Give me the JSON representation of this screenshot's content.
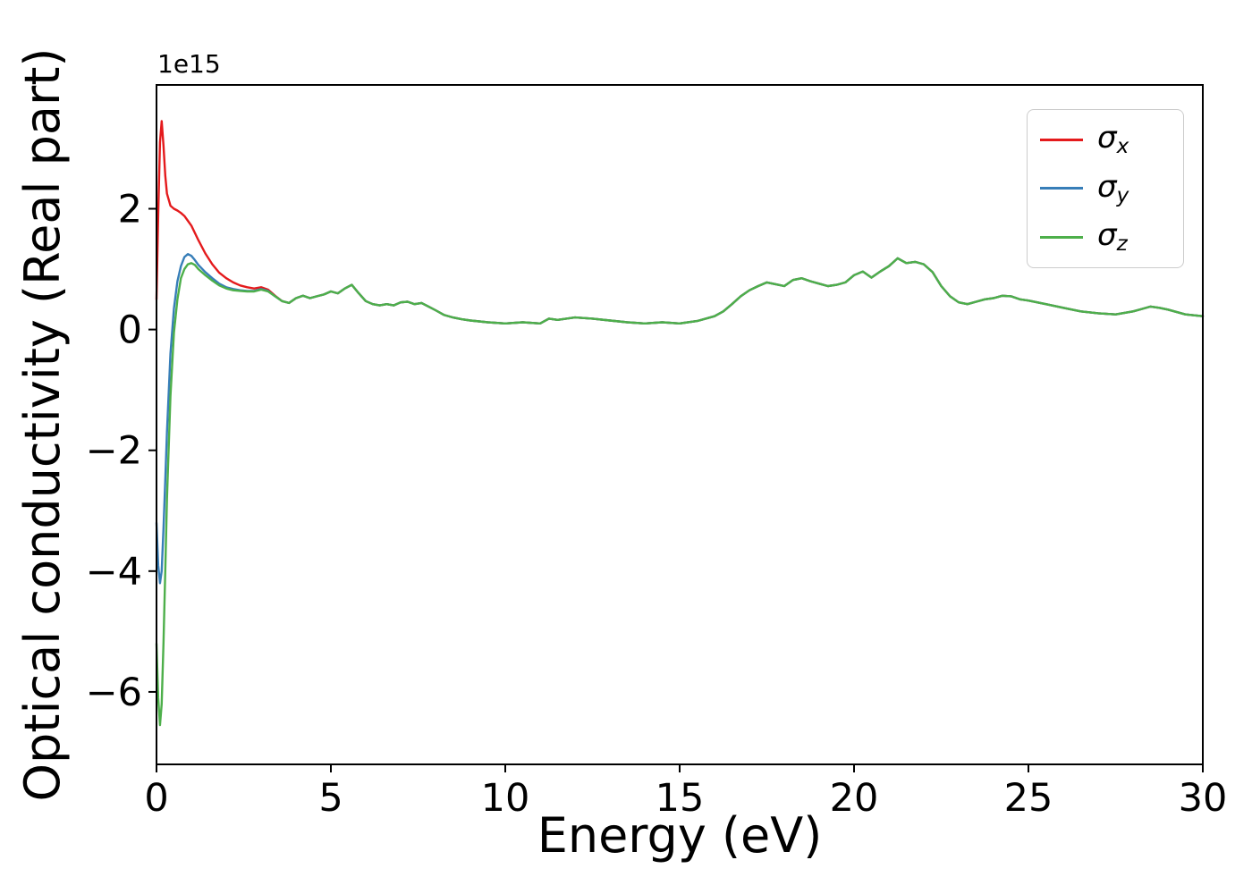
{
  "chart_data": {
    "type": "line",
    "title": "",
    "xlabel": "Energy (eV)",
    "ylabel": "Optical conductivity (Real part)",
    "offset_text": "1e15",
    "grid": false,
    "legend_position": "upper right",
    "xlim": [
      0,
      30
    ],
    "ylim": [
      -7.2,
      4.05
    ],
    "xticks": [
      {
        "v": 0,
        "label": "0"
      },
      {
        "v": 5,
        "label": "5"
      },
      {
        "v": 10,
        "label": "10"
      },
      {
        "v": 15,
        "label": "15"
      },
      {
        "v": 20,
        "label": "20"
      },
      {
        "v": 25,
        "label": "25"
      },
      {
        "v": 30,
        "label": "30"
      }
    ],
    "yticks": [
      {
        "v": 2,
        "label": "2"
      },
      {
        "v": 0,
        "label": "0"
      },
      {
        "v": -2,
        "label": "−2"
      },
      {
        "v": -4,
        "label": "−4"
      },
      {
        "v": -6,
        "label": "−6"
      }
    ],
    "x": [
      0,
      0.05,
      0.1,
      0.15,
      0.2,
      0.25,
      0.3,
      0.4,
      0.5,
      0.6,
      0.7,
      0.8,
      0.9,
      1.0,
      1.1,
      1.2,
      1.4,
      1.6,
      1.8,
      2.0,
      2.2,
      2.4,
      2.6,
      2.8,
      3.0,
      3.2,
      3.4,
      3.6,
      3.8,
      4.0,
      4.2,
      4.4,
      4.6,
      4.8,
      5.0,
      5.2,
      5.4,
      5.6,
      5.8,
      6.0,
      6.2,
      6.4,
      6.6,
      6.8,
      7.0,
      7.2,
      7.4,
      7.6,
      7.8,
      8.0,
      8.25,
      8.5,
      8.75,
      9.0,
      9.5,
      10.0,
      10.5,
      11.0,
      11.25,
      11.5,
      12.0,
      12.5,
      13.0,
      13.5,
      14.0,
      14.5,
      15.0,
      15.5,
      16.0,
      16.25,
      16.5,
      16.75,
      17.0,
      17.25,
      17.5,
      17.75,
      18.0,
      18.25,
      18.5,
      18.75,
      19.0,
      19.25,
      19.5,
      19.75,
      20.0,
      20.25,
      20.5,
      20.75,
      21.0,
      21.25,
      21.5,
      21.75,
      22.0,
      22.25,
      22.5,
      22.75,
      23.0,
      23.25,
      23.5,
      23.75,
      24.0,
      24.25,
      24.5,
      24.75,
      25.0,
      25.5,
      26.0,
      26.5,
      27.0,
      27.5,
      28.0,
      28.25,
      28.5,
      28.75,
      29.0,
      29.5,
      30.0
    ],
    "series": [
      {
        "id": "sigma_x",
        "symbol": "σ",
        "sub": "x",
        "color": "#e41a1c",
        "values": [
          0.5,
          1.9,
          3.1,
          3.45,
          3.05,
          2.55,
          2.25,
          2.05,
          2.0,
          1.97,
          1.93,
          1.88,
          1.8,
          1.72,
          1.6,
          1.48,
          1.26,
          1.08,
          0.94,
          0.85,
          0.78,
          0.73,
          0.7,
          0.68,
          0.7,
          0.66,
          0.56,
          0.47,
          0.44,
          0.52,
          0.56,
          0.52,
          0.55,
          0.58,
          0.63,
          0.6,
          0.68,
          0.74,
          0.6,
          0.47,
          0.42,
          0.4,
          0.42,
          0.4,
          0.45,
          0.46,
          0.42,
          0.44,
          0.38,
          0.32,
          0.24,
          0.2,
          0.17,
          0.15,
          0.12,
          0.1,
          0.12,
          0.1,
          0.18,
          0.16,
          0.2,
          0.18,
          0.15,
          0.12,
          0.1,
          0.12,
          0.1,
          0.14,
          0.22,
          0.3,
          0.42,
          0.55,
          0.65,
          0.72,
          0.78,
          0.75,
          0.72,
          0.82,
          0.85,
          0.8,
          0.76,
          0.72,
          0.74,
          0.78,
          0.9,
          0.96,
          0.86,
          0.96,
          1.05,
          1.18,
          1.1,
          1.12,
          1.08,
          0.95,
          0.72,
          0.55,
          0.45,
          0.42,
          0.46,
          0.5,
          0.52,
          0.56,
          0.55,
          0.5,
          0.48,
          0.42,
          0.36,
          0.3,
          0.27,
          0.25,
          0.3,
          0.34,
          0.38,
          0.36,
          0.33,
          0.25,
          0.22
        ]
      },
      {
        "id": "sigma_y",
        "symbol": "σ",
        "sub": "y",
        "color": "#377eb8",
        "values": [
          -3.2,
          -3.9,
          -4.2,
          -4.0,
          -3.3,
          -2.5,
          -1.7,
          -0.4,
          0.35,
          0.8,
          1.05,
          1.2,
          1.25,
          1.22,
          1.15,
          1.07,
          0.95,
          0.85,
          0.76,
          0.7,
          0.67,
          0.65,
          0.64,
          0.64,
          0.67,
          0.64,
          0.55,
          0.47,
          0.44,
          0.52,
          0.56,
          0.52,
          0.55,
          0.58,
          0.63,
          0.6,
          0.68,
          0.74,
          0.6,
          0.47,
          0.42,
          0.4,
          0.42,
          0.4,
          0.45,
          0.46,
          0.42,
          0.44,
          0.38,
          0.32,
          0.24,
          0.2,
          0.17,
          0.15,
          0.12,
          0.1,
          0.12,
          0.1,
          0.18,
          0.16,
          0.2,
          0.18,
          0.15,
          0.12,
          0.1,
          0.12,
          0.1,
          0.14,
          0.22,
          0.3,
          0.42,
          0.55,
          0.65,
          0.72,
          0.78,
          0.75,
          0.72,
          0.82,
          0.85,
          0.8,
          0.76,
          0.72,
          0.74,
          0.78,
          0.9,
          0.96,
          0.86,
          0.96,
          1.05,
          1.18,
          1.1,
          1.12,
          1.08,
          0.95,
          0.72,
          0.55,
          0.45,
          0.42,
          0.46,
          0.5,
          0.52,
          0.56,
          0.55,
          0.5,
          0.48,
          0.42,
          0.36,
          0.3,
          0.27,
          0.25,
          0.3,
          0.34,
          0.38,
          0.36,
          0.33,
          0.25,
          0.22
        ]
      },
      {
        "id": "sigma_z",
        "symbol": "σ",
        "sub": "z",
        "color": "#4daf4a",
        "values": [
          -5.2,
          -6.1,
          -6.55,
          -6.2,
          -5.2,
          -4.0,
          -2.8,
          -1.1,
          -0.05,
          0.5,
          0.85,
          1.0,
          1.08,
          1.1,
          1.07,
          1.0,
          0.9,
          0.81,
          0.73,
          0.68,
          0.65,
          0.64,
          0.63,
          0.63,
          0.66,
          0.63,
          0.55,
          0.47,
          0.44,
          0.52,
          0.56,
          0.52,
          0.55,
          0.58,
          0.63,
          0.6,
          0.68,
          0.74,
          0.6,
          0.47,
          0.42,
          0.4,
          0.42,
          0.4,
          0.45,
          0.46,
          0.42,
          0.44,
          0.38,
          0.32,
          0.24,
          0.2,
          0.17,
          0.15,
          0.12,
          0.1,
          0.12,
          0.1,
          0.18,
          0.16,
          0.2,
          0.18,
          0.15,
          0.12,
          0.1,
          0.12,
          0.1,
          0.14,
          0.22,
          0.3,
          0.42,
          0.55,
          0.65,
          0.72,
          0.78,
          0.75,
          0.72,
          0.82,
          0.85,
          0.8,
          0.76,
          0.72,
          0.74,
          0.78,
          0.9,
          0.96,
          0.86,
          0.96,
          1.05,
          1.18,
          1.1,
          1.12,
          1.08,
          0.95,
          0.72,
          0.55,
          0.45,
          0.42,
          0.46,
          0.5,
          0.52,
          0.56,
          0.55,
          0.5,
          0.48,
          0.42,
          0.36,
          0.3,
          0.27,
          0.25,
          0.3,
          0.34,
          0.38,
          0.36,
          0.33,
          0.25,
          0.22
        ]
      }
    ]
  }
}
